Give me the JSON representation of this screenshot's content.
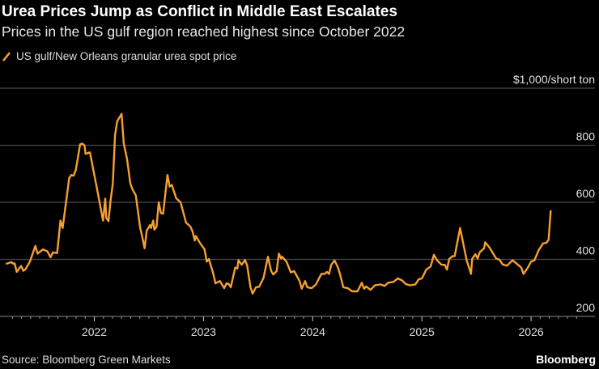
{
  "title": "Urea Prices Jump as Conflict in Middle East Escalates",
  "subtitle": "Prices in the US gulf region reached highest since October 2022",
  "source": "Source: Bloomberg Green Markets",
  "brand": "Bloomberg",
  "colors": {
    "line": "#f5a030",
    "grid": "#4a4a4a",
    "background": "#000000"
  },
  "chart_data": {
    "type": "line",
    "title": "Urea Prices Jump as Conflict in Middle East Escalates",
    "ylabel": "$1,000/short ton",
    "xlabel": "",
    "ylim": [
      200,
      1000
    ],
    "yticks": [
      200,
      400,
      600,
      800
    ],
    "ytick_labels": [
      "200",
      "400",
      "600",
      "800"
    ],
    "xticks": [
      2022,
      2023,
      2024,
      2025,
      2026
    ],
    "xtick_labels": [
      "2022",
      "2023",
      "2024",
      "2025",
      "2026"
    ],
    "grid": true,
    "legend_position": "top-left",
    "series": [
      {
        "name": "US gulf/New Orleans granular urea spot price",
        "x": [
          2021.19,
          2021.24,
          2021.26,
          2021.27,
          2021.29,
          2021.33,
          2021.35,
          2021.37,
          2021.41,
          2021.46,
          2021.48,
          2021.53,
          2021.57,
          2021.6,
          2021.62,
          2021.66,
          2021.69,
          2021.71,
          2021.77,
          2021.79,
          2021.81,
          2021.83,
          2021.87,
          2021.89,
          2021.91,
          2021.92,
          2021.96,
          2022.02,
          2022.08,
          2022.1,
          2022.11,
          2022.13,
          2022.15,
          2022.17,
          2022.19,
          2022.21,
          2022.25,
          2022.27,
          2022.3,
          2022.33,
          2022.35,
          2022.38,
          2022.42,
          2022.44,
          2022.46,
          2022.48,
          2022.51,
          2022.52,
          2022.54,
          2022.55,
          2022.57,
          2022.59,
          2022.61,
          2022.63,
          2022.67,
          2022.69,
          2022.71,
          2022.75,
          2022.79,
          2022.84,
          2022.88,
          2022.9,
          2022.92,
          2022.93,
          2022.97,
          2023.01,
          2023.03,
          2023.05,
          2023.09,
          2023.11,
          2023.15,
          2023.19,
          2023.21,
          2023.23,
          2023.25,
          2023.29,
          2023.31,
          2023.32,
          2023.35,
          2023.38,
          2023.4,
          2023.43,
          2023.45,
          2023.48,
          2023.51,
          2023.55,
          2023.59,
          2023.62,
          2023.64,
          2023.67,
          2023.69,
          2023.71,
          2023.72,
          2023.76,
          2023.8,
          2023.83,
          2023.88,
          2023.9,
          2023.93,
          2023.95,
          2023.99,
          2024.03,
          2024.06,
          2024.08,
          2024.11,
          2024.13,
          2024.15,
          2024.17,
          2024.2,
          2024.23,
          2024.25,
          2024.28,
          2024.32,
          2024.36,
          2024.41,
          2024.45,
          2024.47,
          2024.49,
          2024.53,
          2024.57,
          2024.62,
          2024.66,
          2024.69,
          2024.74,
          2024.78,
          2024.82,
          2024.85,
          2024.89,
          2024.94,
          2024.97,
          2025.0,
          2025.04,
          2025.08,
          2025.11,
          2025.14,
          2025.18,
          2025.21,
          2025.23,
          2025.25,
          2025.28,
          2025.3,
          2025.35,
          2025.41,
          2025.45,
          2025.46,
          2025.49,
          2025.51,
          2025.53,
          2025.57,
          2025.58,
          2025.62,
          2025.68,
          2025.71,
          2025.74,
          2025.78,
          2025.83,
          2025.87,
          2025.91,
          2025.93,
          2025.97,
          2026.0,
          2026.03,
          2026.07,
          2026.11,
          2026.14,
          2026.16,
          2026.18
        ],
        "values": [
          384,
          390,
          384,
          386,
          356,
          377,
          360,
          365,
          392,
          447,
          420,
          435,
          428,
          407,
          424,
          422,
          536,
          510,
          685,
          696,
          693,
          713,
          803,
          806,
          799,
          770,
          775,
          657,
          536,
          613,
          545,
          534,
          609,
          666,
          836,
          884,
          910,
          806,
          751,
          666,
          645,
          624,
          510,
          477,
          439,
          501,
          520,
          510,
          536,
          504,
          515,
          600,
          562,
          560,
          696,
          655,
          661,
          614,
          600,
          529,
          515,
          498,
          466,
          482,
          456,
          435,
          392,
          401,
          349,
          316,
          324,
          299,
          316,
          314,
          302,
          371,
          368,
          397,
          381,
          398,
          378,
          302,
          280,
          302,
          304,
          335,
          409,
          359,
          347,
          359,
          420,
          403,
          409,
          392,
          354,
          359,
          324,
          297,
          324,
          302,
          299,
          312,
          335,
          349,
          349,
          356,
          349,
          381,
          396,
          373,
          349,
          302,
          299,
          288,
          288,
          318,
          297,
          305,
          293,
          309,
          312,
          307,
          318,
          321,
          333,
          326,
          314,
          309,
          312,
          330,
          333,
          364,
          375,
          416,
          396,
          381,
          381,
          364,
          401,
          411,
          411,
          510,
          397,
          349,
          401,
          418,
          403,
          425,
          439,
          460,
          441,
          403,
          399,
          382,
          378,
          397,
          384,
          371,
          349,
          371,
          392,
          396,
          432,
          456,
          458,
          468,
          572
        ]
      }
    ]
  }
}
